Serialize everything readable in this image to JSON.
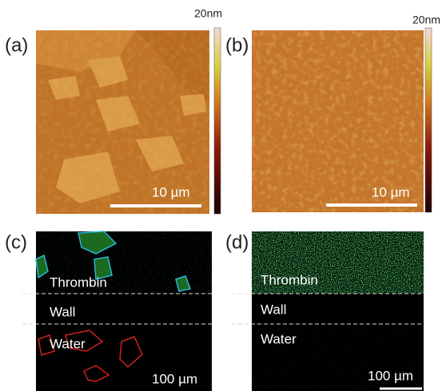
{
  "panels": [
    {
      "label": "(a)",
      "colorbar_label": "20nm",
      "scale_bar": "10 µm"
    },
    {
      "label": "(b)",
      "colorbar_label": "20nm",
      "scale_bar": "10 µm"
    },
    {
      "label": "(c)",
      "regions": [
        "Thrombin",
        "Wall",
        "Water"
      ],
      "scale_bar": "100 µm"
    },
    {
      "label": "(d)",
      "regions": [
        "Thrombin",
        "Wall",
        "Water"
      ],
      "scale_bar": "100 µm"
    }
  ]
}
